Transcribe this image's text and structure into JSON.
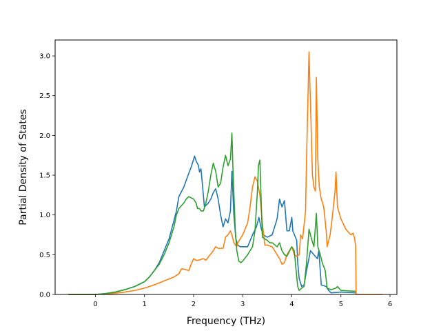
{
  "chart_data": {
    "type": "line",
    "title": "",
    "xlabel": "Frequency (THz)",
    "ylabel": "Partial Density of States",
    "xlim": [
      -0.82,
      6.14
    ],
    "ylim": [
      0.0,
      3.2
    ],
    "xticks": [
      0,
      1,
      2,
      3,
      4,
      5,
      6
    ],
    "yticks": [
      0.0,
      0.5,
      1.0,
      1.5,
      2.0,
      2.5,
      3.0
    ],
    "xtick_labels": [
      "0",
      "1",
      "2",
      "3",
      "4",
      "5",
      "6"
    ],
    "ytick_labels": [
      "0.0",
      "0.5",
      "1.0",
      "1.5",
      "2.0",
      "2.5",
      "3.0"
    ],
    "grid": false,
    "legend": "none",
    "series": [
      {
        "color": "#1f77b4",
        "points": [
          [
            -0.55,
            0
          ],
          [
            0,
            0
          ],
          [
            0.2,
            0.01
          ],
          [
            0.4,
            0.03
          ],
          [
            0.6,
            0.06
          ],
          [
            0.8,
            0.1
          ],
          [
            1.0,
            0.16
          ],
          [
            1.1,
            0.22
          ],
          [
            1.2,
            0.3
          ],
          [
            1.3,
            0.4
          ],
          [
            1.4,
            0.55
          ],
          [
            1.5,
            0.7
          ],
          [
            1.6,
            0.93
          ],
          [
            1.65,
            1.05
          ],
          [
            1.7,
            1.23
          ],
          [
            1.8,
            1.35
          ],
          [
            1.9,
            1.52
          ],
          [
            1.95,
            1.6
          ],
          [
            2.0,
            1.7
          ],
          [
            2.02,
            1.74
          ],
          [
            2.05,
            1.68
          ],
          [
            2.1,
            1.62
          ],
          [
            2.12,
            1.54
          ],
          [
            2.15,
            1.58
          ],
          [
            2.18,
            1.38
          ],
          [
            2.22,
            1.1
          ],
          [
            2.3,
            1.15
          ],
          [
            2.35,
            1.2
          ],
          [
            2.4,
            1.28
          ],
          [
            2.45,
            1.33
          ],
          [
            2.5,
            1.2
          ],
          [
            2.55,
            1.0
          ],
          [
            2.6,
            0.85
          ],
          [
            2.65,
            0.95
          ],
          [
            2.7,
            0.9
          ],
          [
            2.75,
            1.05
          ],
          [
            2.78,
            1.55
          ],
          [
            2.82,
            1.0
          ],
          [
            2.86,
            0.7
          ],
          [
            2.9,
            0.62
          ],
          [
            2.95,
            0.6
          ],
          [
            3.0,
            0.6
          ],
          [
            3.1,
            0.6
          ],
          [
            3.2,
            0.75
          ],
          [
            3.28,
            0.85
          ],
          [
            3.33,
            0.97
          ],
          [
            3.38,
            0.82
          ],
          [
            3.42,
            0.75
          ],
          [
            3.5,
            0.72
          ],
          [
            3.6,
            0.75
          ],
          [
            3.7,
            0.95
          ],
          [
            3.75,
            1.2
          ],
          [
            3.8,
            1.1
          ],
          [
            3.85,
            1.18
          ],
          [
            3.9,
            0.8
          ],
          [
            3.95,
            0.8
          ],
          [
            4.0,
            0.97
          ],
          [
            4.02,
            0.8
          ],
          [
            4.1,
            0.68
          ],
          [
            4.12,
            0.4
          ],
          [
            4.15,
            0.2
          ],
          [
            4.2,
            0.1
          ],
          [
            4.25,
            0.12
          ],
          [
            4.3,
            0.3
          ],
          [
            4.38,
            0.55
          ],
          [
            4.45,
            0.5
          ],
          [
            4.52,
            0.45
          ],
          [
            4.55,
            0.55
          ],
          [
            4.6,
            0.12
          ],
          [
            4.7,
            0.1
          ],
          [
            4.75,
            0.05
          ],
          [
            4.8,
            0.02
          ],
          [
            5.0,
            0.03
          ],
          [
            5.3,
            0.02
          ]
        ]
      },
      {
        "color": "#ff7f0e",
        "points": [
          [
            -0.55,
            0
          ],
          [
            0,
            0
          ],
          [
            0.2,
            0.005
          ],
          [
            0.4,
            0.015
          ],
          [
            0.6,
            0.03
          ],
          [
            0.8,
            0.05
          ],
          [
            1.0,
            0.08
          ],
          [
            1.2,
            0.12
          ],
          [
            1.4,
            0.17
          ],
          [
            1.6,
            0.22
          ],
          [
            1.7,
            0.26
          ],
          [
            1.75,
            0.32
          ],
          [
            1.8,
            0.32
          ],
          [
            1.9,
            0.3
          ],
          [
            1.95,
            0.38
          ],
          [
            2.0,
            0.45
          ],
          [
            2.05,
            0.43
          ],
          [
            2.1,
            0.43
          ],
          [
            2.2,
            0.45
          ],
          [
            2.25,
            0.43
          ],
          [
            2.3,
            0.47
          ],
          [
            2.4,
            0.55
          ],
          [
            2.45,
            0.6
          ],
          [
            2.5,
            0.58
          ],
          [
            2.6,
            0.58
          ],
          [
            2.65,
            0.72
          ],
          [
            2.7,
            0.75
          ],
          [
            2.75,
            0.8
          ],
          [
            2.78,
            0.75
          ],
          [
            2.82,
            0.65
          ],
          [
            2.88,
            0.6
          ],
          [
            2.9,
            0.65
          ],
          [
            3.0,
            0.75
          ],
          [
            3.1,
            0.9
          ],
          [
            3.15,
            1.1
          ],
          [
            3.2,
            1.35
          ],
          [
            3.25,
            1.48
          ],
          [
            3.3,
            1.42
          ],
          [
            3.35,
            1.25
          ],
          [
            3.4,
            0.9
          ],
          [
            3.45,
            0.62
          ],
          [
            3.5,
            0.62
          ],
          [
            3.6,
            0.6
          ],
          [
            3.7,
            0.5
          ],
          [
            3.75,
            0.45
          ],
          [
            3.8,
            0.38
          ],
          [
            3.85,
            0.4
          ],
          [
            3.9,
            0.5
          ],
          [
            3.95,
            0.55
          ],
          [
            4.0,
            0.6
          ],
          [
            4.05,
            0.5
          ],
          [
            4.1,
            0.48
          ],
          [
            4.15,
            0.5
          ],
          [
            4.18,
            0.75
          ],
          [
            4.22,
            0.7
          ],
          [
            4.28,
            1.05
          ],
          [
            4.3,
            1.7
          ],
          [
            4.35,
            3.05
          ],
          [
            4.38,
            2.4
          ],
          [
            4.42,
            1.5
          ],
          [
            4.45,
            1.35
          ],
          [
            4.48,
            1.3
          ],
          [
            4.5,
            2.73
          ],
          [
            4.53,
            1.7
          ],
          [
            4.56,
            1.35
          ],
          [
            4.6,
            1.2
          ],
          [
            4.65,
            1.1
          ],
          [
            4.7,
            0.8
          ],
          [
            4.72,
            0.6
          ],
          [
            4.78,
            0.75
          ],
          [
            4.82,
            0.95
          ],
          [
            4.88,
            1.3
          ],
          [
            4.9,
            1.54
          ],
          [
            4.93,
            1.1
          ],
          [
            5.0,
            0.95
          ],
          [
            5.1,
            0.82
          ],
          [
            5.2,
            0.75
          ],
          [
            5.25,
            0.77
          ],
          [
            5.28,
            0.7
          ],
          [
            5.3,
            0.6
          ],
          [
            5.31,
            0
          ],
          [
            5.85,
            0
          ]
        ]
      },
      {
        "color": "#2ca02c",
        "points": [
          [
            -0.55,
            0
          ],
          [
            0,
            0
          ],
          [
            0.2,
            0.01
          ],
          [
            0.4,
            0.03
          ],
          [
            0.6,
            0.06
          ],
          [
            0.8,
            0.1
          ],
          [
            1.0,
            0.16
          ],
          [
            1.1,
            0.22
          ],
          [
            1.2,
            0.3
          ],
          [
            1.3,
            0.38
          ],
          [
            1.4,
            0.5
          ],
          [
            1.5,
            0.65
          ],
          [
            1.6,
            0.85
          ],
          [
            1.65,
            1.0
          ],
          [
            1.7,
            1.08
          ],
          [
            1.8,
            1.15
          ],
          [
            1.85,
            1.2
          ],
          [
            1.9,
            1.23
          ],
          [
            2.0,
            1.2
          ],
          [
            2.05,
            1.15
          ],
          [
            2.08,
            1.08
          ],
          [
            2.12,
            1.08
          ],
          [
            2.15,
            1.05
          ],
          [
            2.2,
            1.05
          ],
          [
            2.25,
            1.15
          ],
          [
            2.3,
            1.3
          ],
          [
            2.35,
            1.5
          ],
          [
            2.4,
            1.65
          ],
          [
            2.45,
            1.55
          ],
          [
            2.5,
            1.35
          ],
          [
            2.55,
            1.4
          ],
          [
            2.6,
            1.6
          ],
          [
            2.65,
            1.75
          ],
          [
            2.7,
            1.62
          ],
          [
            2.75,
            1.7
          ],
          [
            2.78,
            2.03
          ],
          [
            2.8,
            1.6
          ],
          [
            2.85,
            0.8
          ],
          [
            2.88,
            0.55
          ],
          [
            2.92,
            0.42
          ],
          [
            2.96,
            0.4
          ],
          [
            3.0,
            0.42
          ],
          [
            3.1,
            0.5
          ],
          [
            3.15,
            0.55
          ],
          [
            3.2,
            0.6
          ],
          [
            3.25,
            0.8
          ],
          [
            3.3,
            1.3
          ],
          [
            3.32,
            1.62
          ],
          [
            3.35,
            1.69
          ],
          [
            3.38,
            1.1
          ],
          [
            3.4,
            0.72
          ],
          [
            3.45,
            0.7
          ],
          [
            3.5,
            0.68
          ],
          [
            3.55,
            0.65
          ],
          [
            3.6,
            0.65
          ],
          [
            3.7,
            0.6
          ],
          [
            3.75,
            0.65
          ],
          [
            3.8,
            0.55
          ],
          [
            3.85,
            0.5
          ],
          [
            3.9,
            0.48
          ],
          [
            4.0,
            0.6
          ],
          [
            4.05,
            0.55
          ],
          [
            4.08,
            0.35
          ],
          [
            4.12,
            0.1
          ],
          [
            4.15,
            0.05
          ],
          [
            4.2,
            0.08
          ],
          [
            4.25,
            0.1
          ],
          [
            4.3,
            0.4
          ],
          [
            4.35,
            0.82
          ],
          [
            4.4,
            0.7
          ],
          [
            4.45,
            0.6
          ],
          [
            4.48,
            0.85
          ],
          [
            4.5,
            1.02
          ],
          [
            4.53,
            0.6
          ],
          [
            4.58,
            0.5
          ],
          [
            4.62,
            0.4
          ],
          [
            4.68,
            0.3
          ],
          [
            4.72,
            0.08
          ],
          [
            4.8,
            0.06
          ],
          [
            4.9,
            0.08
          ],
          [
            4.93,
            0.1
          ],
          [
            5.0,
            0.05
          ],
          [
            5.3,
            0.04
          ]
        ]
      }
    ]
  }
}
